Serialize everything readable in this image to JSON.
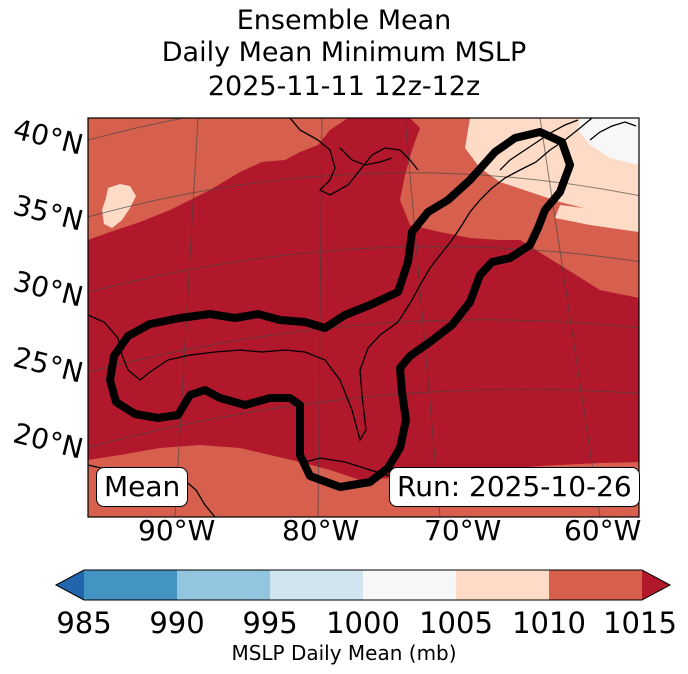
{
  "title": {
    "line1": "Ensemble Mean",
    "line2": "Daily Mean Minimum MSLP",
    "line3": "2025-11-11 12z-12z"
  },
  "map": {
    "lat_labels": [
      "40°N",
      "35°N",
      "30°N",
      "25°N",
      "20°N"
    ],
    "lon_labels": [
      "90°W",
      "80°W",
      "70°W",
      "60°W"
    ],
    "legend_left": "Mean",
    "legend_right": "Run: 2025-10-26",
    "fill_colors": {
      "1005_1010": "#fddbc7",
      "1010_1015": "#d6604d",
      "above_1015": "#b2182b",
      "1000_1005": "#f7f7f7"
    }
  },
  "colorbar": {
    "label": "MSLP Daily Mean (mb)",
    "ticks": [
      "985",
      "990",
      "995",
      "1000",
      "1005",
      "1010",
      "1015"
    ],
    "colors": [
      "#2166ac",
      "#4393c3",
      "#92c5de",
      "#d1e5f0",
      "#f7f7f7",
      "#fddbc7",
      "#d6604d",
      "#b2182b"
    ]
  }
}
